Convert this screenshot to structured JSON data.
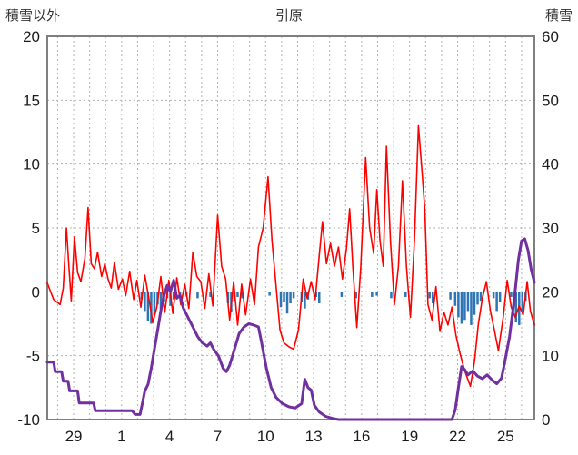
{
  "header": {
    "left_axis_title": "積雪以外",
    "station_title": "引原",
    "right_axis_title": "積雪"
  },
  "chart_data": {
    "type": "line",
    "title": "引原",
    "left_axis": {
      "label": "積雪以外",
      "min": -10,
      "max": 20,
      "ticks": [
        20,
        15,
        10,
        5,
        0,
        -5,
        -10
      ]
    },
    "right_axis": {
      "label": "積雪",
      "min": 0,
      "max": 60,
      "ticks": [
        60,
        50,
        40,
        30,
        20,
        10,
        0
      ]
    },
    "x_axis": {
      "range": [
        0,
        30.45
      ],
      "tick_labels": [
        "29",
        "1",
        "4",
        "7",
        "10",
        "13",
        "16",
        "19",
        "22",
        "25"
      ],
      "tick_positions": [
        1.65,
        4.65,
        7.65,
        10.65,
        13.65,
        16.65,
        19.65,
        22.65,
        25.65,
        28.65
      ],
      "gridline_start": 0.65,
      "gridline_step": 1
    },
    "grid": {
      "color": "#b3b3b3",
      "dash": "2 3"
    },
    "frame_color": "#7f7f7f",
    "series": [
      {
        "name": "temperature-line",
        "axis": "left",
        "color": "#ff0000",
        "width": 1.6,
        "points": [
          [
            0,
            0.7
          ],
          [
            0.4,
            -0.6
          ],
          [
            0.8,
            -1
          ],
          [
            1.0,
            0.3
          ],
          [
            1.2,
            5
          ],
          [
            1.35,
            2
          ],
          [
            1.5,
            -0.7
          ],
          [
            1.7,
            4.3
          ],
          [
            1.9,
            1.5
          ],
          [
            2.1,
            0.8
          ],
          [
            2.35,
            2.6
          ],
          [
            2.55,
            6.6
          ],
          [
            2.75,
            2.2
          ],
          [
            2.95,
            1.8
          ],
          [
            3.15,
            3.1
          ],
          [
            3.4,
            1.2
          ],
          [
            3.6,
            2.2
          ],
          [
            3.8,
            1
          ],
          [
            4.0,
            0.3
          ],
          [
            4.2,
            2.3
          ],
          [
            4.45,
            0.2
          ],
          [
            4.7,
            1
          ],
          [
            4.9,
            -0.3
          ],
          [
            5.15,
            1.6
          ],
          [
            5.4,
            -0.6
          ],
          [
            5.6,
            0.9
          ],
          [
            5.85,
            -1.2
          ],
          [
            6.1,
            1.3
          ],
          [
            6.35,
            -0.5
          ],
          [
            6.6,
            -2.4
          ],
          [
            6.85,
            -1.2
          ],
          [
            7.1,
            1.2
          ],
          [
            7.35,
            -1.6
          ],
          [
            7.6,
            0.9
          ],
          [
            7.85,
            -1.7
          ],
          [
            8.1,
            1.1
          ],
          [
            8.35,
            -1
          ],
          [
            8.6,
            0.6
          ],
          [
            8.85,
            -1.3
          ],
          [
            9.1,
            3.1
          ],
          [
            9.35,
            1.2
          ],
          [
            9.6,
            0.8
          ],
          [
            9.85,
            -1.3
          ],
          [
            10.1,
            1.4
          ],
          [
            10.35,
            -1.1
          ],
          [
            10.65,
            6
          ],
          [
            10.9,
            2
          ],
          [
            11.15,
            1
          ],
          [
            11.4,
            -2.2
          ],
          [
            11.65,
            0.8
          ],
          [
            11.9,
            -2.6
          ],
          [
            12.15,
            0.6
          ],
          [
            12.4,
            -1.8
          ],
          [
            12.7,
            1
          ],
          [
            12.95,
            -1
          ],
          [
            13.2,
            3.5
          ],
          [
            13.5,
            5
          ],
          [
            13.8,
            9
          ],
          [
            14.05,
            4
          ],
          [
            14.3,
            0.5
          ],
          [
            14.55,
            -3
          ],
          [
            14.8,
            -4
          ],
          [
            15.1,
            -4.3
          ],
          [
            15.4,
            -4.5
          ],
          [
            15.7,
            -3
          ],
          [
            16,
            1
          ],
          [
            16.25,
            -0.5
          ],
          [
            16.5,
            0.8
          ],
          [
            16.75,
            -0.6
          ],
          [
            17,
            2.8
          ],
          [
            17.2,
            5.5
          ],
          [
            17.45,
            2.2
          ],
          [
            17.7,
            3.8
          ],
          [
            17.95,
            2
          ],
          [
            18.2,
            3.5
          ],
          [
            18.45,
            1
          ],
          [
            18.7,
            3.4
          ],
          [
            18.9,
            6.5
          ],
          [
            19.1,
            2
          ],
          [
            19.35,
            -2.8
          ],
          [
            19.6,
            2
          ],
          [
            19.9,
            10.5
          ],
          [
            20.15,
            5
          ],
          [
            20.4,
            3
          ],
          [
            20.6,
            8
          ],
          [
            20.8,
            4
          ],
          [
            21,
            2
          ],
          [
            21.2,
            11.4
          ],
          [
            21.45,
            4
          ],
          [
            21.7,
            -1
          ],
          [
            21.95,
            2
          ],
          [
            22.2,
            8.7
          ],
          [
            22.45,
            2
          ],
          [
            22.7,
            -2
          ],
          [
            22.95,
            4
          ],
          [
            23.2,
            13
          ],
          [
            23.45,
            9
          ],
          [
            23.6,
            6.5
          ],
          [
            23.8,
            -1
          ],
          [
            24.05,
            -2.2
          ],
          [
            24.3,
            0.4
          ],
          [
            24.55,
            -3.1
          ],
          [
            24.8,
            -1.6
          ],
          [
            25.05,
            -2.6
          ],
          [
            25.3,
            -1.2
          ],
          [
            25.55,
            -3.4
          ],
          [
            25.8,
            -4.8
          ],
          [
            26.1,
            -6.2
          ],
          [
            26.45,
            -7.4
          ],
          [
            26.7,
            -5.5
          ],
          [
            26.95,
            -2.5
          ],
          [
            27.2,
            -0.5
          ],
          [
            27.45,
            0.8
          ],
          [
            27.7,
            -1.5
          ],
          [
            27.95,
            -3
          ],
          [
            28.2,
            -4.6
          ],
          [
            28.5,
            -2
          ],
          [
            28.75,
            0.9
          ],
          [
            29,
            -1.2
          ],
          [
            29.25,
            -2
          ],
          [
            29.5,
            -1.1
          ],
          [
            29.75,
            -1.8
          ],
          [
            30,
            0.8
          ],
          [
            30.2,
            -1.5
          ],
          [
            30.45,
            -2.6
          ]
        ]
      },
      {
        "name": "snow-depth-line",
        "axis": "right",
        "color": "#7030a0",
        "width": 3,
        "points": [
          [
            0,
            9
          ],
          [
            0.4,
            9
          ],
          [
            0.5,
            7.5
          ],
          [
            0.9,
            7.5
          ],
          [
            1,
            6
          ],
          [
            1.3,
            6
          ],
          [
            1.4,
            4.5
          ],
          [
            1.9,
            4.5
          ],
          [
            2,
            2.6
          ],
          [
            2.9,
            2.6
          ],
          [
            3,
            1.4
          ],
          [
            5.3,
            1.4
          ],
          [
            5.5,
            0.8
          ],
          [
            5.8,
            0.8
          ],
          [
            5.9,
            2
          ],
          [
            6.1,
            4.5
          ],
          [
            6.3,
            5.5
          ],
          [
            6.5,
            8
          ],
          [
            6.7,
            11
          ],
          [
            6.9,
            14
          ],
          [
            7.1,
            17
          ],
          [
            7.3,
            19.5
          ],
          [
            7.5,
            21
          ],
          [
            7.7,
            20
          ],
          [
            7.9,
            21.8
          ],
          [
            8.1,
            19
          ],
          [
            8.3,
            19.5
          ],
          [
            8.5,
            17.5
          ],
          [
            8.8,
            16
          ],
          [
            9.1,
            14.5
          ],
          [
            9.4,
            13
          ],
          [
            9.7,
            12
          ],
          [
            10,
            11.5
          ],
          [
            10.2,
            12
          ],
          [
            10.4,
            11
          ],
          [
            10.7,
            10
          ],
          [
            11,
            8
          ],
          [
            11.2,
            7.5
          ],
          [
            11.4,
            8.5
          ],
          [
            11.7,
            11
          ],
          [
            12,
            13.5
          ],
          [
            12.3,
            14.5
          ],
          [
            12.6,
            15
          ],
          [
            12.9,
            14.8
          ],
          [
            13.2,
            14.5
          ],
          [
            13.4,
            12
          ],
          [
            13.7,
            8
          ],
          [
            14,
            5
          ],
          [
            14.3,
            3.5
          ],
          [
            14.7,
            2.5
          ],
          [
            15.1,
            2
          ],
          [
            15.5,
            1.8
          ],
          [
            15.9,
            2.5
          ],
          [
            16.1,
            6.3
          ],
          [
            16.3,
            5
          ],
          [
            16.5,
            4.6
          ],
          [
            16.7,
            2.2
          ],
          [
            17,
            1.2
          ],
          [
            17.4,
            0.5
          ],
          [
            17.8,
            0.2
          ],
          [
            18.2,
            0
          ],
          [
            25.3,
            0
          ],
          [
            25.5,
            1.5
          ],
          [
            25.7,
            5
          ],
          [
            25.9,
            8.3
          ],
          [
            26.1,
            7.8
          ],
          [
            26.3,
            7
          ],
          [
            26.6,
            7.6
          ],
          [
            26.9,
            6.8
          ],
          [
            27.2,
            6.4
          ],
          [
            27.5,
            7
          ],
          [
            27.8,
            6.2
          ],
          [
            28.1,
            5.6
          ],
          [
            28.4,
            6.5
          ],
          [
            28.6,
            9
          ],
          [
            28.9,
            13
          ],
          [
            29.2,
            19
          ],
          [
            29.45,
            25
          ],
          [
            29.65,
            28
          ],
          [
            29.85,
            28.3
          ],
          [
            30.05,
            26.5
          ],
          [
            30.25,
            23.5
          ],
          [
            30.45,
            21.5
          ]
        ]
      }
    ],
    "bars": {
      "name": "precipitation-bars",
      "axis": "left",
      "color": "#2e75b6",
      "bar_width": 2.5,
      "points": [
        [
          5.9,
          -0.6
        ],
        [
          6.1,
          -1.5
        ],
        [
          6.3,
          -2.3
        ],
        [
          6.5,
          -2.5
        ],
        [
          6.7,
          -1.8
        ],
        [
          6.9,
          -1.0
        ],
        [
          7.1,
          -1.4
        ],
        [
          7.3,
          -0.8
        ],
        [
          7.5,
          -0.5
        ],
        [
          7.7,
          -1.1
        ],
        [
          7.9,
          -0.6
        ],
        [
          8.3,
          -0.4
        ],
        [
          8.7,
          -0.3
        ],
        [
          9.4,
          -0.5
        ],
        [
          10.2,
          -0.4
        ],
        [
          11.3,
          -0.9
        ],
        [
          11.5,
          -1.6
        ],
        [
          11.7,
          -0.7
        ],
        [
          11.9,
          -0.4
        ],
        [
          12.2,
          -0.5
        ],
        [
          13.9,
          -0.3
        ],
        [
          14.6,
          -1.2
        ],
        [
          14.8,
          -0.8
        ],
        [
          15.0,
          -1.7
        ],
        [
          15.2,
          -0.9
        ],
        [
          15.4,
          -0.5
        ],
        [
          15.9,
          -0.8
        ],
        [
          16.1,
          -1.3
        ],
        [
          16.3,
          -0.6
        ],
        [
          16.8,
          -0.4
        ],
        [
          17.0,
          -0.9
        ],
        [
          18.4,
          -0.4
        ],
        [
          19.3,
          -0.5
        ],
        [
          20.3,
          -0.4
        ],
        [
          20.6,
          -0.3
        ],
        [
          21.5,
          -0.5
        ],
        [
          22.4,
          -0.4
        ],
        [
          23.9,
          -0.5
        ],
        [
          24.1,
          -0.9
        ],
        [
          25.2,
          -0.6
        ],
        [
          25.5,
          -1.1
        ],
        [
          25.7,
          -2.0
        ],
        [
          25.9,
          -2.5
        ],
        [
          26.1,
          -2.2
        ],
        [
          26.3,
          -1.5
        ],
        [
          26.5,
          -2.6
        ],
        [
          26.7,
          -1.8
        ],
        [
          26.9,
          -1.0
        ],
        [
          27.1,
          -0.7
        ],
        [
          27.9,
          -0.5
        ],
        [
          28.1,
          -1.5
        ],
        [
          28.3,
          -0.8
        ],
        [
          29.0,
          -0.4
        ],
        [
          29.3,
          -2.4
        ],
        [
          29.5,
          -2.6
        ],
        [
          29.7,
          -1.5
        ],
        [
          29.9,
          -0.7
        ]
      ]
    }
  }
}
